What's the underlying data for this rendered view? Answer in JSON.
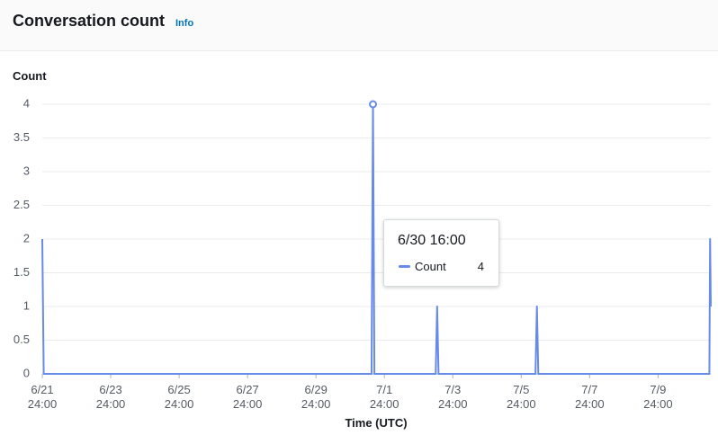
{
  "header": {
    "title": "Conversation count",
    "info": "Info"
  },
  "chart_data": {
    "type": "line",
    "ylabel": "Count",
    "xlabel": "Time (UTC)",
    "x": [
      "6/21 24:00",
      "6/21 01:00",
      "6/30 15:00",
      "6/30 16:00",
      "6/30 17:00",
      "7/2 12:00",
      "7/2 13:00",
      "7/2 14:00",
      "7/5 10:00",
      "7/5 11:00",
      "7/5 12:00",
      "7/10 12:00",
      "7/10 12:30",
      "7/10 13:00"
    ],
    "series": [
      {
        "name": "Count",
        "color": "#688ae8",
        "values": [
          2,
          0,
          0,
          4,
          0,
          0,
          1,
          0,
          0,
          1,
          0,
          0,
          2,
          1
        ]
      }
    ],
    "xlim": [
      "6/21 24:00",
      "7/10 13:00"
    ],
    "xticks": [
      {
        "value": "6/21 24:00",
        "label": "6/21\n24:00"
      },
      {
        "value": "6/23 24:00",
        "label": "6/23\n24:00"
      },
      {
        "value": "6/25 24:00",
        "label": "6/25\n24:00"
      },
      {
        "value": "6/27 24:00",
        "label": "6/27\n24:00"
      },
      {
        "value": "6/29 24:00",
        "label": "6/29\n24:00"
      },
      {
        "value": "7/1 24:00",
        "label": "7/1\n24:00"
      },
      {
        "value": "7/3 24:00",
        "label": "7/3\n24:00"
      },
      {
        "value": "7/5 24:00",
        "label": "7/5\n24:00"
      },
      {
        "value": "7/7 24:00",
        "label": "7/7\n24:00"
      },
      {
        "value": "7/9 24:00",
        "label": "7/9\n24:00"
      }
    ],
    "ylim": [
      0,
      4
    ],
    "yticks": [
      0,
      0.5,
      1,
      1.5,
      2,
      2.5,
      3,
      3.5,
      4
    ],
    "grid": true
  },
  "tooltip": {
    "title": "6/30 16:00",
    "series": "Count",
    "value": 4
  }
}
